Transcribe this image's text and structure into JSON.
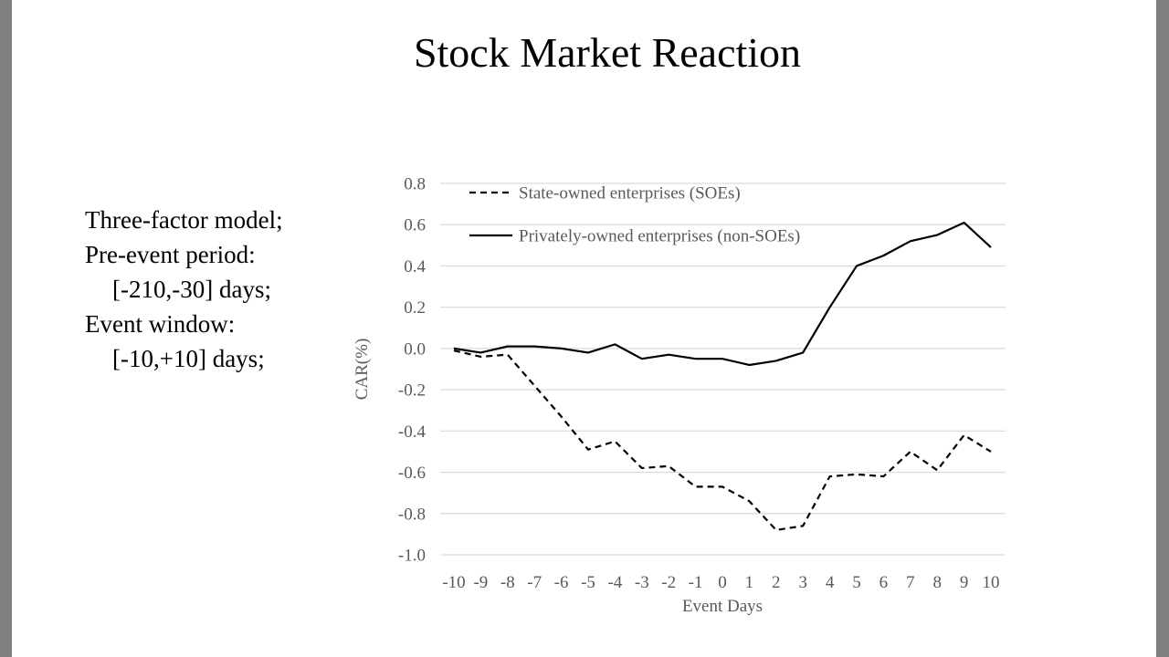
{
  "slide": {
    "title": "Stock Market Reaction",
    "info_lines": [
      "Three-factor model;",
      "Pre-event period:",
      "[-210,-30] days;",
      "Event window:",
      "[-10,+10] days;"
    ]
  },
  "chart_data": {
    "type": "line",
    "title": "",
    "xlabel": "Event Days",
    "ylabel": "CAR(%)",
    "x": [
      -10,
      -9,
      -8,
      -7,
      -6,
      -5,
      -4,
      -3,
      -2,
      -1,
      0,
      1,
      2,
      3,
      4,
      5,
      6,
      7,
      8,
      9,
      10
    ],
    "ylim": [
      -1.0,
      0.8
    ],
    "ytick_labels": [
      "0.8",
      "0.6",
      "0.4",
      "0.2",
      "0.0",
      "-0.2",
      "-0.4",
      "-0.6",
      "-0.8",
      "-1.0"
    ],
    "grid": true,
    "legend_position": "top-left-inside",
    "series": [
      {
        "name": "State-owned enterprises (SOEs)",
        "style": "dashed",
        "color": "#000000",
        "values": [
          -0.01,
          -0.04,
          -0.03,
          -0.18,
          -0.33,
          -0.49,
          -0.45,
          -0.58,
          -0.57,
          -0.67,
          -0.67,
          -0.74,
          -0.88,
          -0.86,
          -0.62,
          -0.61,
          -0.62,
          -0.5,
          -0.59,
          -0.42,
          -0.5
        ]
      },
      {
        "name": "Privately-owned enterprises (non-SOEs)",
        "style": "solid",
        "color": "#000000",
        "values": [
          0.0,
          -0.02,
          0.01,
          0.01,
          0.0,
          -0.02,
          0.02,
          -0.05,
          -0.03,
          -0.05,
          -0.05,
          -0.08,
          -0.06,
          -0.02,
          0.2,
          0.4,
          0.45,
          0.52,
          0.55,
          0.61,
          0.49
        ]
      }
    ],
    "colors": {
      "grid": "#d9d9d9",
      "axis_text": "#595959",
      "frame": "#7f7f7f",
      "background": "#ffffff"
    }
  }
}
